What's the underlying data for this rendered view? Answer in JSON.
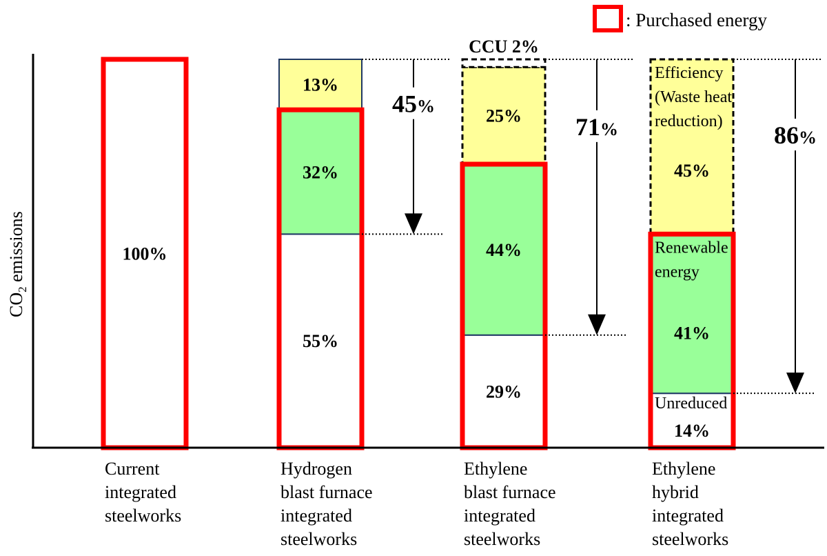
{
  "chart_data": {
    "type": "bar",
    "stacked": true,
    "ylabel_main": "CO",
    "ylabel_sub": "2",
    "ylabel_rest": " emissions",
    "ylim": [
      0,
      100
    ],
    "legend": {
      "label": ": Purchased energy",
      "color": "#ff0000",
      "position": "top-right"
    },
    "colors": {
      "purchased": "#ff0000",
      "yellow": "#ffff99",
      "green": "#99ff99",
      "white": "#ffffff",
      "navy": "#1f3864"
    },
    "bars": [
      {
        "label_lines": [
          "Current",
          "integrated",
          "steelworks"
        ],
        "segments": [
          {
            "value": 100,
            "label": "100%",
            "fill": "white"
          }
        ],
        "purchased_top": 100
      },
      {
        "label_lines": [
          "Hydrogen",
          "blast furnace",
          "integrated",
          "steelworks"
        ],
        "segments": [
          {
            "value": 55,
            "label": "55%",
            "fill": "white"
          },
          {
            "value": 32,
            "label": "32%",
            "fill": "green"
          },
          {
            "value": 13,
            "label": "13%",
            "fill": "yellow"
          }
        ],
        "purchased_top": 87,
        "reduction": {
          "value_text": "45",
          "unit": "%",
          "to_level": 55
        }
      },
      {
        "label_lines": [
          "Ethylene",
          "blast furnace",
          "integrated",
          "steelworks"
        ],
        "segments": [
          {
            "value": 29,
            "label": "29%",
            "fill": "white"
          },
          {
            "value": 44,
            "label": "44%",
            "fill": "green"
          },
          {
            "value": 25,
            "label": "25%",
            "fill": "yellow",
            "dashed": true
          },
          {
            "value": 2,
            "label": "",
            "fill": "white",
            "dashed": true
          }
        ],
        "purchased_top": 73,
        "top_note": "CCU 2%",
        "reduction": {
          "value_text": "71",
          "unit": "%",
          "to_level": 29
        }
      },
      {
        "label_lines": [
          "Ethylene",
          "hybrid",
          "integrated",
          "steelworks"
        ],
        "segments": [
          {
            "value": 14,
            "label": "14%",
            "caption": [
              "Unreduced"
            ],
            "fill": "white"
          },
          {
            "value": 41,
            "label": "41%",
            "caption": [
              "Renewable",
              "energy"
            ],
            "fill": "green"
          },
          {
            "value": 45,
            "label": "45%",
            "caption": [
              "Efficiency",
              "(Waste heat",
              "reduction)"
            ],
            "fill": "yellow",
            "dashed": true
          }
        ],
        "purchased_top": 55,
        "reduction": {
          "value_text": "86",
          "unit": "%",
          "to_level": 14
        }
      }
    ]
  }
}
